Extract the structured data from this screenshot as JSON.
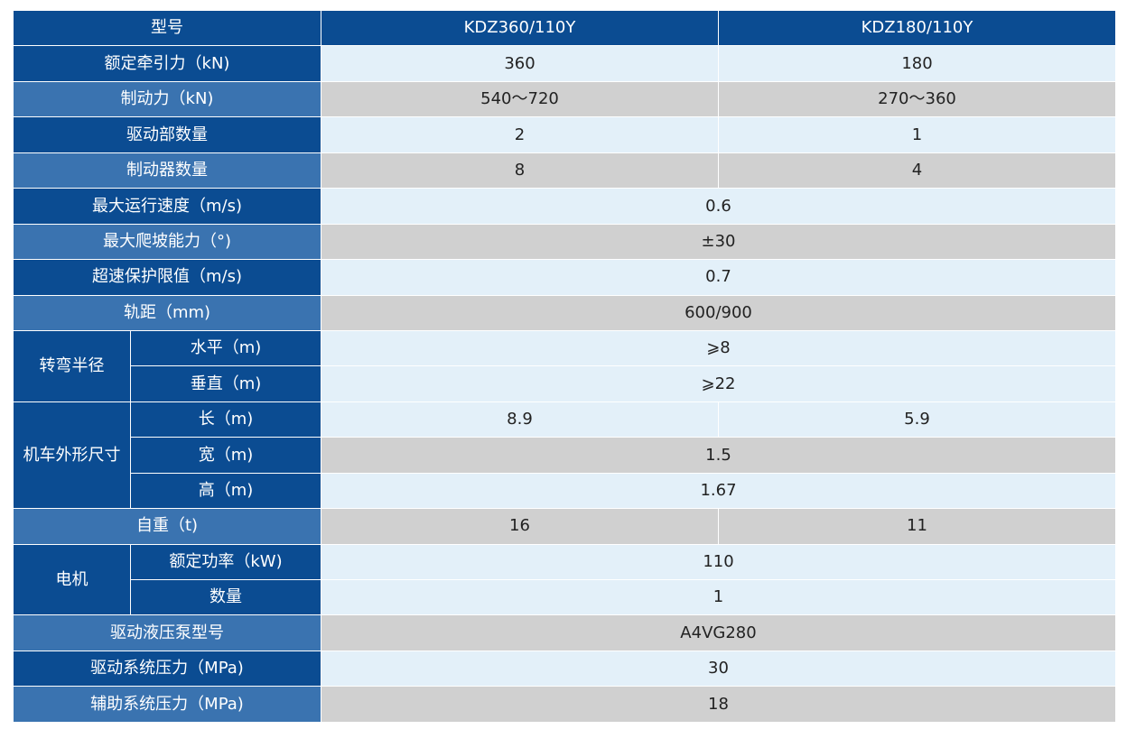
{
  "header": {
    "label": "型号",
    "model_a": "KDZ360/110Y",
    "model_b": "KDZ180/110Y"
  },
  "rows": [
    {
      "label": "额定牵引力（kN)",
      "a": "360",
      "b": "180"
    },
    {
      "label": "制动力（kN)",
      "a": "540～720",
      "b": "270～360"
    },
    {
      "label": "驱动部数量",
      "a": "2",
      "b": "1"
    },
    {
      "label": "制动器数量",
      "a": "8",
      "b": "4"
    },
    {
      "label": "最大运行速度（m/s)",
      "value": "0.6"
    },
    {
      "label": "最大爬坡能力（°)",
      "value": "±30"
    },
    {
      "label": "超速保护限值（m/s)",
      "value": "0.7"
    },
    {
      "label": "轨距（mm)",
      "value": "600/900"
    }
  ],
  "turning": {
    "group": "转弯半径",
    "items": [
      {
        "label": "水平（m)",
        "value": "⩾8"
      },
      {
        "label": "垂直（m)",
        "value": "⩾22"
      }
    ]
  },
  "dimensions": {
    "group": "机车外形尺寸",
    "length": {
      "label": "长（m)",
      "a": "8.9",
      "b": "5.9"
    },
    "width": {
      "label": "宽（m)",
      "value": "1.5"
    },
    "height": {
      "label": "高（m)",
      "value": "1.67"
    }
  },
  "weight": {
    "label": "自重（t)",
    "a": "16",
    "b": "11"
  },
  "motor": {
    "group": "电机",
    "items": [
      {
        "label": "额定功率（kW)",
        "value": "110"
      },
      {
        "label": "数量",
        "value": "1"
      }
    ]
  },
  "tail": [
    {
      "label": "驱动液压泵型号",
      "value": "A4VG280"
    },
    {
      "label": "驱动系统压力（MPa)",
      "value": "30"
    },
    {
      "label": "辅助系统压力（MPa)",
      "value": "18"
    }
  ],
  "colors": {
    "header_dark": "#0b4c92",
    "header_light": "#3a73b0",
    "row_light": "#e3f0f9",
    "row_grey": "#d0d0d0"
  }
}
